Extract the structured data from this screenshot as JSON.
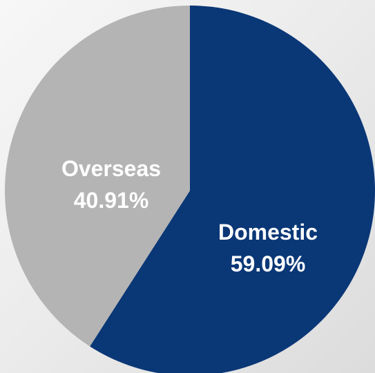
{
  "chart_data": {
    "type": "pie",
    "title": "",
    "start_angle_deg": 0,
    "direction": "clockwise",
    "slices": [
      {
        "label": "Domestic",
        "value": 59.09,
        "value_text": "59.09%",
        "color": "#0a3776"
      },
      {
        "label": "Overseas",
        "value": 40.91,
        "value_text": "40.91%",
        "color": "#b4b4b4"
      }
    ]
  }
}
